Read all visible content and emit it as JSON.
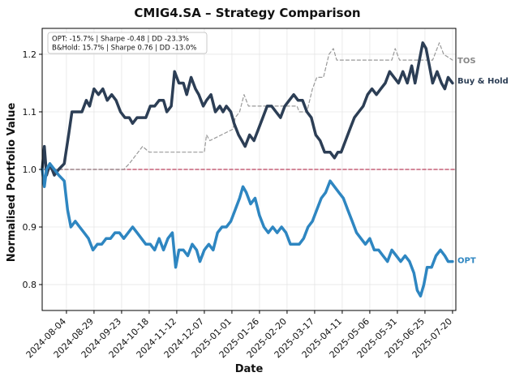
{
  "chart_data": {
    "type": "line",
    "title": "CMIG4.SA – Strategy Comparison",
    "xlabel": "Date",
    "ylabel": "Normalised Portfolio Value",
    "xlim": [
      "2024-07-13",
      "2025-07-23"
    ],
    "ylim": [
      0.755,
      1.245
    ],
    "yticks": [
      0.8,
      0.9,
      1.0,
      1.1,
      1.2
    ],
    "ytick_labels": [
      "0.8",
      "0.9",
      "1.0",
      "1.1",
      "1.2"
    ],
    "xticks": [
      "2024-08-04",
      "2024-08-29",
      "2024-09-23",
      "2024-10-18",
      "2024-11-12",
      "2024-12-07",
      "2025-01-01",
      "2025-01-26",
      "2025-02-20",
      "2025-03-17",
      "2025-04-11",
      "2025-05-06",
      "2025-05-31",
      "2025-06-25",
      "2025-07-20"
    ],
    "grid": true,
    "stats_box": {
      "line1": "OPT: -15.7% | Sharpe -0.48 | DD -23.3%",
      "line2": "B&Hold: 15.7% | Sharpe 0.76 | DD -13.0%"
    },
    "series": [
      {
        "name": "Buy & Hold",
        "color": "#2c3e55",
        "points": [
          [
            "2024-07-13",
            1.0
          ],
          [
            "2024-07-15",
            1.04
          ],
          [
            "2024-07-17",
            0.99
          ],
          [
            "2024-07-20",
            1.01
          ],
          [
            "2024-07-24",
            0.99
          ],
          [
            "2024-07-28",
            1.0
          ],
          [
            "2024-08-02",
            1.01
          ],
          [
            "2024-08-06",
            1.06
          ],
          [
            "2024-08-09",
            1.1
          ],
          [
            "2024-08-14",
            1.1
          ],
          [
            "2024-08-18",
            1.1
          ],
          [
            "2024-08-22",
            1.12
          ],
          [
            "2024-08-25",
            1.11
          ],
          [
            "2024-08-29",
            1.14
          ],
          [
            "2024-09-02",
            1.13
          ],
          [
            "2024-09-06",
            1.14
          ],
          [
            "2024-09-10",
            1.12
          ],
          [
            "2024-09-14",
            1.13
          ],
          [
            "2024-09-18",
            1.12
          ],
          [
            "2024-09-22",
            1.1
          ],
          [
            "2024-09-26",
            1.09
          ],
          [
            "2024-09-30",
            1.09
          ],
          [
            "2024-10-03",
            1.08
          ],
          [
            "2024-10-07",
            1.09
          ],
          [
            "2024-10-11",
            1.09
          ],
          [
            "2024-10-15",
            1.09
          ],
          [
            "2024-10-19",
            1.11
          ],
          [
            "2024-10-23",
            1.11
          ],
          [
            "2024-10-27",
            1.12
          ],
          [
            "2024-10-31",
            1.12
          ],
          [
            "2024-11-03",
            1.1
          ],
          [
            "2024-11-07",
            1.11
          ],
          [
            "2024-11-10",
            1.17
          ],
          [
            "2024-11-14",
            1.15
          ],
          [
            "2024-11-18",
            1.15
          ],
          [
            "2024-11-21",
            1.13
          ],
          [
            "2024-11-25",
            1.16
          ],
          [
            "2024-11-29",
            1.14
          ],
          [
            "2024-12-02",
            1.13
          ],
          [
            "2024-12-06",
            1.11
          ],
          [
            "2024-12-09",
            1.12
          ],
          [
            "2024-12-13",
            1.13
          ],
          [
            "2024-12-17",
            1.1
          ],
          [
            "2024-12-21",
            1.11
          ],
          [
            "2024-12-24",
            1.1
          ],
          [
            "2024-12-27",
            1.11
          ],
          [
            "2024-12-31",
            1.1
          ],
          [
            "2025-01-03",
            1.08
          ],
          [
            "2025-01-07",
            1.06
          ],
          [
            "2025-01-10",
            1.05
          ],
          [
            "2025-01-13",
            1.04
          ],
          [
            "2025-01-17",
            1.06
          ],
          [
            "2025-01-21",
            1.05
          ],
          [
            "2025-01-25",
            1.07
          ],
          [
            "2025-01-29",
            1.09
          ],
          [
            "2025-02-02",
            1.11
          ],
          [
            "2025-02-06",
            1.11
          ],
          [
            "2025-02-10",
            1.1
          ],
          [
            "2025-02-14",
            1.09
          ],
          [
            "2025-02-18",
            1.11
          ],
          [
            "2025-02-22",
            1.12
          ],
          [
            "2025-02-26",
            1.13
          ],
          [
            "2025-03-02",
            1.12
          ],
          [
            "2025-03-06",
            1.12
          ],
          [
            "2025-03-10",
            1.1
          ],
          [
            "2025-03-14",
            1.09
          ],
          [
            "2025-03-18",
            1.06
          ],
          [
            "2025-03-22",
            1.05
          ],
          [
            "2025-03-26",
            1.03
          ],
          [
            "2025-03-31",
            1.03
          ],
          [
            "2025-04-04",
            1.02
          ],
          [
            "2025-04-07",
            1.03
          ],
          [
            "2025-04-10",
            1.03
          ],
          [
            "2025-04-14",
            1.05
          ],
          [
            "2025-04-18",
            1.07
          ],
          [
            "2025-04-22",
            1.09
          ],
          [
            "2025-04-26",
            1.1
          ],
          [
            "2025-04-30",
            1.11
          ],
          [
            "2025-05-04",
            1.13
          ],
          [
            "2025-05-08",
            1.14
          ],
          [
            "2025-05-12",
            1.13
          ],
          [
            "2025-05-16",
            1.14
          ],
          [
            "2025-05-20",
            1.15
          ],
          [
            "2025-05-24",
            1.17
          ],
          [
            "2025-05-28",
            1.16
          ],
          [
            "2025-06-01",
            1.15
          ],
          [
            "2025-06-05",
            1.17
          ],
          [
            "2025-06-09",
            1.15
          ],
          [
            "2025-06-13",
            1.18
          ],
          [
            "2025-06-16",
            1.15
          ],
          [
            "2025-06-20",
            1.19
          ],
          [
            "2025-06-23",
            1.22
          ],
          [
            "2025-06-26",
            1.21
          ],
          [
            "2025-06-29",
            1.18
          ],
          [
            "2025-07-02",
            1.15
          ],
          [
            "2025-07-06",
            1.17
          ],
          [
            "2025-07-10",
            1.15
          ],
          [
            "2025-07-13",
            1.14
          ],
          [
            "2025-07-16",
            1.16
          ],
          [
            "2025-07-20",
            1.15
          ]
        ]
      },
      {
        "name": "OPT",
        "color": "#2e86c1",
        "points": [
          [
            "2024-07-13",
            1.0
          ],
          [
            "2024-07-15",
            0.97
          ],
          [
            "2024-07-17",
            1.0
          ],
          [
            "2024-07-20",
            1.01
          ],
          [
            "2024-07-24",
            1.0
          ],
          [
            "2024-07-28",
            0.99
          ],
          [
            "2024-08-02",
            0.98
          ],
          [
            "2024-08-05",
            0.93
          ],
          [
            "2024-08-08",
            0.9
          ],
          [
            "2024-08-12",
            0.91
          ],
          [
            "2024-08-16",
            0.9
          ],
          [
            "2024-08-20",
            0.89
          ],
          [
            "2024-08-24",
            0.88
          ],
          [
            "2024-08-28",
            0.86
          ],
          [
            "2024-09-01",
            0.87
          ],
          [
            "2024-09-05",
            0.87
          ],
          [
            "2024-09-09",
            0.88
          ],
          [
            "2024-09-13",
            0.88
          ],
          [
            "2024-09-17",
            0.89
          ],
          [
            "2024-09-21",
            0.89
          ],
          [
            "2024-09-25",
            0.88
          ],
          [
            "2024-09-29",
            0.89
          ],
          [
            "2024-10-03",
            0.9
          ],
          [
            "2024-10-07",
            0.89
          ],
          [
            "2024-10-11",
            0.88
          ],
          [
            "2024-10-15",
            0.87
          ],
          [
            "2024-10-19",
            0.87
          ],
          [
            "2024-10-23",
            0.86
          ],
          [
            "2024-10-27",
            0.88
          ],
          [
            "2024-10-31",
            0.86
          ],
          [
            "2024-11-04",
            0.88
          ],
          [
            "2024-11-08",
            0.89
          ],
          [
            "2024-11-11",
            0.83
          ],
          [
            "2024-11-14",
            0.86
          ],
          [
            "2024-11-18",
            0.86
          ],
          [
            "2024-11-22",
            0.85
          ],
          [
            "2024-11-26",
            0.87
          ],
          [
            "2024-11-30",
            0.86
          ],
          [
            "2024-12-03",
            0.84
          ],
          [
            "2024-12-07",
            0.86
          ],
          [
            "2024-12-11",
            0.87
          ],
          [
            "2024-12-15",
            0.86
          ],
          [
            "2024-12-19",
            0.89
          ],
          [
            "2024-12-23",
            0.9
          ],
          [
            "2024-12-27",
            0.9
          ],
          [
            "2024-12-31",
            0.91
          ],
          [
            "2025-01-04",
            0.93
          ],
          [
            "2025-01-08",
            0.95
          ],
          [
            "2025-01-11",
            0.97
          ],
          [
            "2025-01-14",
            0.96
          ],
          [
            "2025-01-18",
            0.94
          ],
          [
            "2025-01-22",
            0.95
          ],
          [
            "2025-01-26",
            0.92
          ],
          [
            "2025-01-30",
            0.9
          ],
          [
            "2025-02-03",
            0.89
          ],
          [
            "2025-02-07",
            0.9
          ],
          [
            "2025-02-11",
            0.89
          ],
          [
            "2025-02-15",
            0.9
          ],
          [
            "2025-02-19",
            0.89
          ],
          [
            "2025-02-23",
            0.87
          ],
          [
            "2025-02-27",
            0.87
          ],
          [
            "2025-03-03",
            0.87
          ],
          [
            "2025-03-07",
            0.88
          ],
          [
            "2025-03-11",
            0.9
          ],
          [
            "2025-03-15",
            0.91
          ],
          [
            "2025-03-19",
            0.93
          ],
          [
            "2025-03-23",
            0.95
          ],
          [
            "2025-03-27",
            0.96
          ],
          [
            "2025-03-31",
            0.98
          ],
          [
            "2025-04-04",
            0.97
          ],
          [
            "2025-04-08",
            0.96
          ],
          [
            "2025-04-12",
            0.95
          ],
          [
            "2025-04-16",
            0.93
          ],
          [
            "2025-04-20",
            0.91
          ],
          [
            "2025-04-24",
            0.89
          ],
          [
            "2025-04-28",
            0.88
          ],
          [
            "2025-05-02",
            0.87
          ],
          [
            "2025-05-06",
            0.88
          ],
          [
            "2025-05-10",
            0.86
          ],
          [
            "2025-05-14",
            0.86
          ],
          [
            "2025-05-18",
            0.85
          ],
          [
            "2025-05-22",
            0.84
          ],
          [
            "2025-05-26",
            0.86
          ],
          [
            "2025-05-30",
            0.85
          ],
          [
            "2025-06-03",
            0.84
          ],
          [
            "2025-06-07",
            0.85
          ],
          [
            "2025-06-11",
            0.84
          ],
          [
            "2025-06-15",
            0.82
          ],
          [
            "2025-06-18",
            0.79
          ],
          [
            "2025-06-21",
            0.78
          ],
          [
            "2025-06-24",
            0.8
          ],
          [
            "2025-06-27",
            0.83
          ],
          [
            "2025-07-01",
            0.83
          ],
          [
            "2025-07-05",
            0.85
          ],
          [
            "2025-07-09",
            0.86
          ],
          [
            "2025-07-13",
            0.85
          ],
          [
            "2025-07-16",
            0.84
          ],
          [
            "2025-07-20",
            0.84
          ]
        ]
      },
      {
        "name": "TOS",
        "color": "#999999",
        "dashed": true,
        "points": [
          [
            "2024-07-13",
            1.0
          ],
          [
            "2024-09-25",
            1.0
          ],
          [
            "2024-09-30",
            1.01
          ],
          [
            "2024-10-04",
            1.02
          ],
          [
            "2024-10-08",
            1.03
          ],
          [
            "2024-10-12",
            1.04
          ],
          [
            "2024-10-18",
            1.03
          ],
          [
            "2024-12-07",
            1.03
          ],
          [
            "2024-12-09",
            1.06
          ],
          [
            "2024-12-12",
            1.05
          ],
          [
            "2025-01-02",
            1.07
          ],
          [
            "2025-01-04",
            1.09
          ],
          [
            "2025-01-08",
            1.1
          ],
          [
            "2025-01-12",
            1.13
          ],
          [
            "2025-01-16",
            1.11
          ],
          [
            "2025-03-01",
            1.11
          ],
          [
            "2025-03-03",
            1.1
          ],
          [
            "2025-03-10",
            1.1
          ],
          [
            "2025-03-15",
            1.14
          ],
          [
            "2025-03-19",
            1.16
          ],
          [
            "2025-03-25",
            1.16
          ],
          [
            "2025-03-30",
            1.2
          ],
          [
            "2025-04-03",
            1.21
          ],
          [
            "2025-04-06",
            1.19
          ],
          [
            "2025-05-26",
            1.19
          ],
          [
            "2025-05-29",
            1.21
          ],
          [
            "2025-06-02",
            1.19
          ],
          [
            "2025-06-29",
            1.19
          ],
          [
            "2025-07-02",
            1.19
          ],
          [
            "2025-07-08",
            1.22
          ],
          [
            "2025-07-12",
            1.2
          ],
          [
            "2025-07-20",
            1.19
          ]
        ]
      },
      {
        "name": "baseline",
        "color": "#c0506a",
        "dashed": true,
        "points": [
          [
            "2024-07-13",
            1.0
          ],
          [
            "2025-07-23",
            1.0
          ]
        ]
      }
    ],
    "end_labels": [
      {
        "series": "TOS",
        "text": "TOS",
        "y": 1.19
      },
      {
        "series": "Buy & Hold",
        "text": "Buy & Hold",
        "y": 1.155
      },
      {
        "series": "OPT",
        "text": "OPT",
        "y": 0.843
      }
    ]
  }
}
